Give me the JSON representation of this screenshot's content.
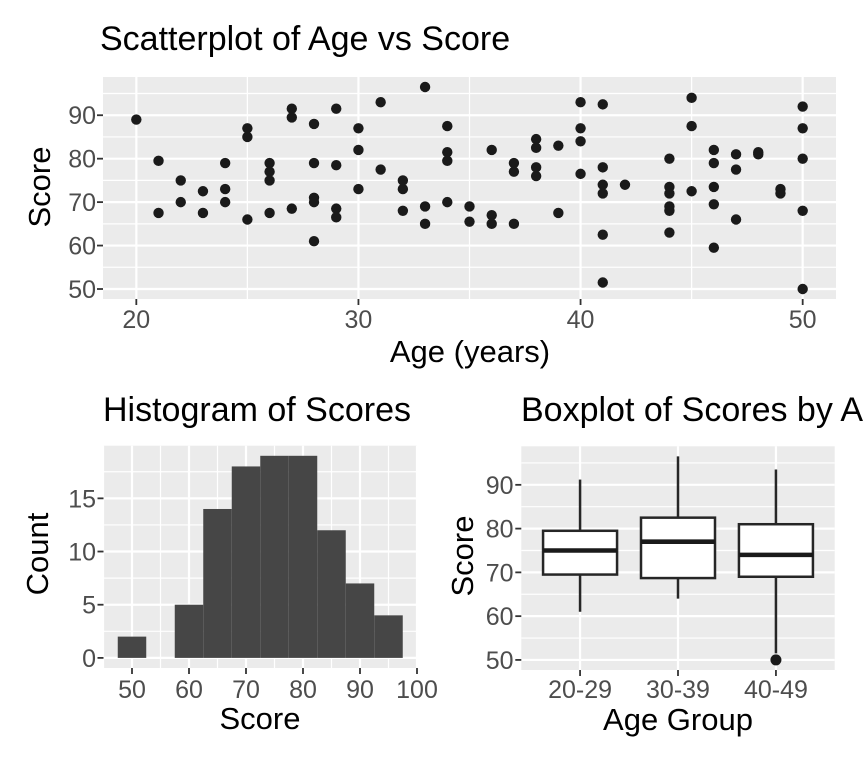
{
  "theme": {
    "background": "#ffffff",
    "panel_bg": "#ebebeb",
    "grid_color": "#ffffff",
    "point_color": "#1a1a1a",
    "bar_fill": "#464646",
    "box_border": "#262626",
    "box_fill": "#ffffff",
    "median_color": "#1a1a1a",
    "outlier_color": "#1a1a1a",
    "tick_mark_color": "#333333",
    "axis_text_color": "#4d4d4d",
    "title_color": "#000000"
  },
  "chart_data": [
    {
      "type": "scatter",
      "title": "Scatterplot of Age vs Score",
      "xlabel": "Age (years)",
      "ylabel": "Score",
      "xlim": [
        18.5,
        51.5
      ],
      "ylim": [
        47.7,
        98.8
      ],
      "xticks": [
        20,
        30,
        40,
        50
      ],
      "xticks_minor": [
        25,
        35,
        45
      ],
      "yticks": [
        50,
        60,
        70,
        80,
        90
      ],
      "yticks_minor": [
        55,
        65,
        75,
        85,
        95
      ],
      "grid": true,
      "points": [
        [
          20,
          89
        ],
        [
          21,
          79.5
        ],
        [
          21,
          67.5
        ],
        [
          22,
          75
        ],
        [
          22,
          70
        ],
        [
          23,
          72.5
        ],
        [
          23,
          67.5
        ],
        [
          24,
          79
        ],
        [
          24,
          73
        ],
        [
          24,
          70
        ],
        [
          25,
          87
        ],
        [
          25,
          85
        ],
        [
          25,
          66
        ],
        [
          26,
          79
        ],
        [
          26,
          77
        ],
        [
          26,
          75
        ],
        [
          26,
          67.5
        ],
        [
          27,
          91.5
        ],
        [
          27,
          89.5
        ],
        [
          27,
          68.5
        ],
        [
          28,
          88
        ],
        [
          28,
          79
        ],
        [
          28,
          71
        ],
        [
          28,
          70
        ],
        [
          28,
          61
        ],
        [
          29,
          91.5
        ],
        [
          29,
          78.5
        ],
        [
          29,
          68.5
        ],
        [
          29,
          66.5
        ],
        [
          30,
          87
        ],
        [
          30,
          82
        ],
        [
          30,
          73
        ],
        [
          31,
          93
        ],
        [
          31,
          77.5
        ],
        [
          32,
          75
        ],
        [
          32,
          73
        ],
        [
          32,
          68
        ],
        [
          33,
          96.5
        ],
        [
          33,
          69
        ],
        [
          33,
          65
        ],
        [
          34,
          87.5
        ],
        [
          34,
          81.5
        ],
        [
          34,
          79.5
        ],
        [
          34,
          70
        ],
        [
          35,
          69
        ],
        [
          35,
          65.5
        ],
        [
          36,
          82
        ],
        [
          36,
          67
        ],
        [
          36,
          65
        ],
        [
          37,
          79
        ],
        [
          37,
          77
        ],
        [
          37,
          65
        ],
        [
          38,
          84.5
        ],
        [
          38,
          82.5
        ],
        [
          38,
          78
        ],
        [
          38,
          76
        ],
        [
          39,
          83
        ],
        [
          39,
          67.5
        ],
        [
          40,
          93
        ],
        [
          40,
          87
        ],
        [
          40,
          84
        ],
        [
          40,
          76.5
        ],
        [
          41,
          92.5
        ],
        [
          41,
          78
        ],
        [
          41,
          74
        ],
        [
          41,
          72
        ],
        [
          41,
          62.5
        ],
        [
          41,
          51.5
        ],
        [
          42,
          74
        ],
        [
          44,
          80
        ],
        [
          44,
          73.5
        ],
        [
          44,
          72
        ],
        [
          44,
          69
        ],
        [
          44,
          68
        ],
        [
          44,
          63
        ],
        [
          45,
          94
        ],
        [
          45,
          87.5
        ],
        [
          45,
          72.5
        ],
        [
          46,
          82
        ],
        [
          46,
          79
        ],
        [
          46,
          73.5
        ],
        [
          46,
          69.5
        ],
        [
          46,
          59.5
        ],
        [
          47,
          81
        ],
        [
          47,
          77.5
        ],
        [
          47,
          66
        ],
        [
          48,
          81.5
        ],
        [
          48,
          81
        ],
        [
          49,
          73
        ],
        [
          49,
          72
        ],
        [
          50,
          92
        ],
        [
          50,
          87
        ],
        [
          50,
          80
        ],
        [
          50,
          68
        ],
        [
          50,
          50
        ]
      ]
    },
    {
      "type": "bar",
      "title": "Histogram of Scores",
      "xlabel": "Score",
      "ylabel": "Count",
      "bins_start": 47.5,
      "bin_width": 5,
      "counts": [
        2,
        0,
        5,
        14,
        18,
        19,
        19,
        12,
        7,
        4
      ],
      "xlim": [
        45,
        100
      ],
      "ylim": [
        -0.95,
        19.95
      ],
      "xticks": [
        50,
        60,
        70,
        80,
        90,
        100
      ],
      "xticks_minor": [
        45,
        55,
        65,
        75,
        85,
        95
      ],
      "yticks": [
        0,
        5,
        10,
        15
      ],
      "yticks_minor": [
        2.5,
        7.5,
        12.5,
        17.5
      ],
      "grid": true
    },
    {
      "type": "boxplot",
      "title": "Boxplot of Scores by A",
      "xlabel": "Age Group",
      "ylabel": "Score",
      "categories": [
        "20-29",
        "30-39",
        "40-49"
      ],
      "ylim": [
        47.7,
        98.8
      ],
      "yticks": [
        50,
        60,
        70,
        80,
        90
      ],
      "yticks_minor": [
        55,
        65,
        75,
        85,
        95
      ],
      "grid": true,
      "boxes": [
        {
          "whisker_low": 61,
          "q1": 69.5,
          "median": 75,
          "q3": 79.5,
          "whisker_high": 91.2,
          "outliers": []
        },
        {
          "whisker_low": 64,
          "q1": 68.7,
          "median": 77,
          "q3": 82.5,
          "whisker_high": 96.5,
          "outliers": []
        },
        {
          "whisker_low": 51.5,
          "q1": 69,
          "median": 74,
          "q3": 81,
          "whisker_high": 93.5,
          "outliers": [
            50
          ]
        }
      ]
    }
  ]
}
